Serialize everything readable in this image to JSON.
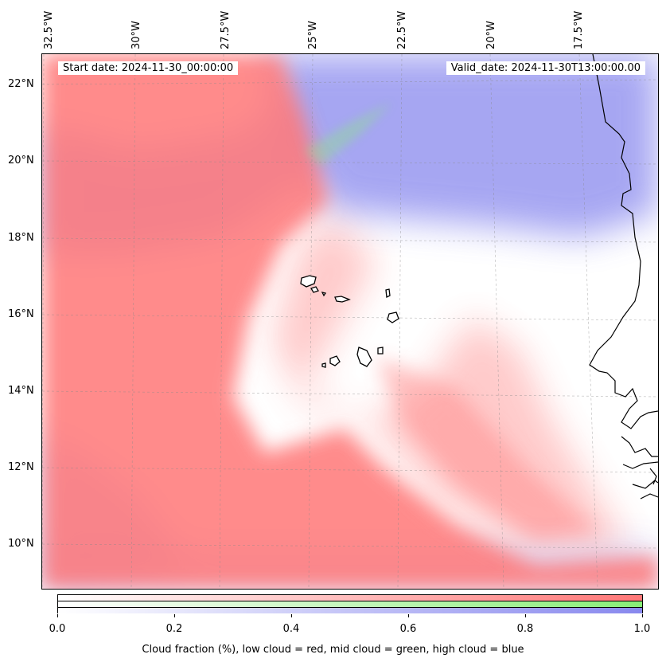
{
  "map": {
    "start_date": "Start date: 2024-11-30_00:00:00",
    "valid_date": "Valid_date: 2024-11-30T13:00:00.00",
    "lon_labels": [
      "32.5°W",
      "30°W",
      "27.5°W",
      "25°W",
      "22.5°W",
      "20°W",
      "17.5°W"
    ],
    "lat_labels": [
      "22°N",
      "20°N",
      "18°N",
      "16°N",
      "14°N",
      "12°N",
      "10°N"
    ],
    "layers": {
      "low_cloud_color": "#ff7777",
      "mid_cloud_color": "#88ee77",
      "high_cloud_color": "#8888ee"
    }
  },
  "colorbar": {
    "ticks": [
      "0.0",
      "0.2",
      "0.4",
      "0.6",
      "0.8",
      "1.0"
    ],
    "caption": "Cloud fraction (%), low cloud = red, mid cloud = green, high cloud = blue"
  }
}
